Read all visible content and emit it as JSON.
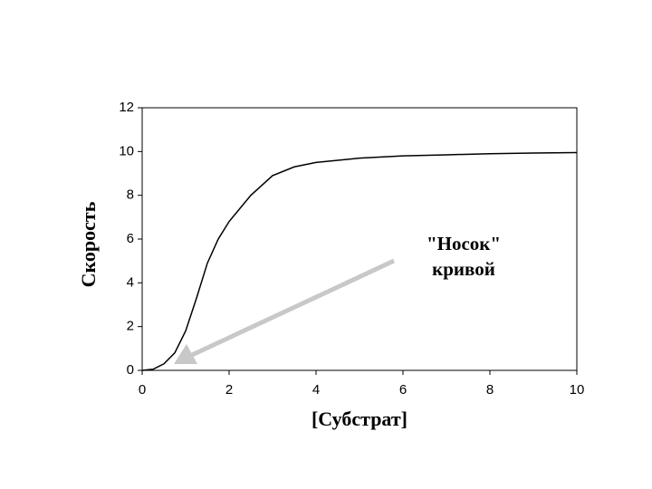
{
  "chart_data": {
    "type": "line",
    "x_label": "[Субстрат]",
    "y_label": "Скорость",
    "annotation": [
      "\"Носок\"",
      "кривой"
    ],
    "x": [
      0,
      0.25,
      0.5,
      0.75,
      1,
      1.25,
      1.5,
      1.75,
      2,
      2.5,
      3,
      3.5,
      4,
      5,
      6,
      7,
      8,
      9,
      10
    ],
    "series": [
      {
        "color": "#000000",
        "values": [
          0,
          0.05,
          0.3,
          0.8,
          1.8,
          3.3,
          4.9,
          6.0,
          6.8,
          8.0,
          8.9,
          9.3,
          9.5,
          9.7,
          9.8,
          9.85,
          9.9,
          9.93,
          9.95
        ]
      }
    ],
    "xlim": [
      0,
      10
    ],
    "ylim": [
      0,
      12
    ],
    "xticks": [
      0,
      2,
      4,
      6,
      8,
      10
    ],
    "yticks": [
      0,
      2,
      4,
      6,
      8,
      10,
      12
    ],
    "grid": false
  }
}
